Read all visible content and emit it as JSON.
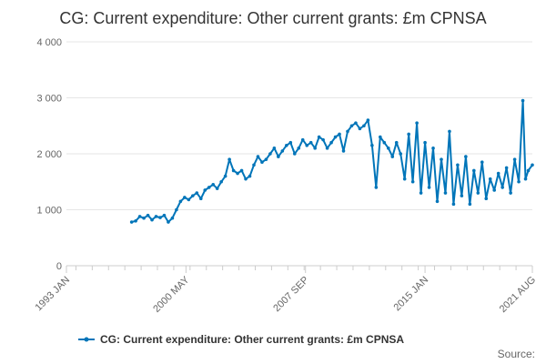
{
  "chart_data": {
    "type": "line",
    "title": "CG: Current expenditure: Other current grants: £m CPNSA",
    "xlabel": "",
    "ylabel": "",
    "x_tick_labels": [
      "1993 JAN",
      "2000 MAY",
      "2007 SEP",
      "2015 JAN",
      "2021 AUG"
    ],
    "x_range": [
      "1993-01",
      "2021-08"
    ],
    "y_ticks": [
      0,
      1000,
      2000,
      3000,
      4000
    ],
    "y_tick_labels": [
      "0",
      "1 000",
      "2 000",
      "3 000",
      "4 000"
    ],
    "ylim": [
      0,
      4000
    ],
    "grid": true,
    "legend_position": "bottom",
    "series": [
      {
        "name": "CG: Current expenditure: Other current grants: £m CPNSA",
        "color": "#0075b9",
        "points": [
          [
            "1997-01",
            780
          ],
          [
            "1997-04",
            800
          ],
          [
            "1997-07",
            880
          ],
          [
            "1997-10",
            850
          ],
          [
            "1998-01",
            900
          ],
          [
            "1998-04",
            820
          ],
          [
            "1998-07",
            880
          ],
          [
            "1998-10",
            860
          ],
          [
            "1999-01",
            900
          ],
          [
            "1999-04",
            780
          ],
          [
            "1999-07",
            850
          ],
          [
            "1999-10",
            1000
          ],
          [
            "2000-01",
            1150
          ],
          [
            "2000-04",
            1220
          ],
          [
            "2000-07",
            1180
          ],
          [
            "2000-10",
            1250
          ],
          [
            "2001-01",
            1300
          ],
          [
            "2001-04",
            1200
          ],
          [
            "2001-07",
            1350
          ],
          [
            "2001-10",
            1400
          ],
          [
            "2002-01",
            1450
          ],
          [
            "2002-04",
            1380
          ],
          [
            "2002-07",
            1500
          ],
          [
            "2002-10",
            1600
          ],
          [
            "2003-01",
            1900
          ],
          [
            "2003-04",
            1700
          ],
          [
            "2003-07",
            1650
          ],
          [
            "2003-10",
            1700
          ],
          [
            "2004-01",
            1550
          ],
          [
            "2004-04",
            1600
          ],
          [
            "2004-07",
            1800
          ],
          [
            "2004-10",
            1950
          ],
          [
            "2005-01",
            1850
          ],
          [
            "2005-04",
            1900
          ],
          [
            "2005-07",
            2000
          ],
          [
            "2005-10",
            2100
          ],
          [
            "2006-01",
            1950
          ],
          [
            "2006-04",
            2050
          ],
          [
            "2006-07",
            2150
          ],
          [
            "2006-10",
            2200
          ],
          [
            "2007-01",
            2000
          ],
          [
            "2007-04",
            2100
          ],
          [
            "2007-07",
            2250
          ],
          [
            "2007-10",
            2150
          ],
          [
            "2008-01",
            2200
          ],
          [
            "2008-04",
            2100
          ],
          [
            "2008-07",
            2300
          ],
          [
            "2008-10",
            2250
          ],
          [
            "2009-01",
            2100
          ],
          [
            "2009-04",
            2200
          ],
          [
            "2009-07",
            2300
          ],
          [
            "2009-10",
            2350
          ],
          [
            "2010-01",
            2050
          ],
          [
            "2010-04",
            2400
          ],
          [
            "2010-07",
            2500
          ],
          [
            "2010-10",
            2550
          ],
          [
            "2011-01",
            2450
          ],
          [
            "2011-04",
            2500
          ],
          [
            "2011-07",
            2600
          ],
          [
            "2011-10",
            2150
          ],
          [
            "2012-01",
            1400
          ],
          [
            "2012-04",
            2300
          ],
          [
            "2012-07",
            2200
          ],
          [
            "2012-10",
            2100
          ],
          [
            "2013-01",
            1950
          ],
          [
            "2013-04",
            2200
          ],
          [
            "2013-07",
            2000
          ],
          [
            "2013-10",
            1550
          ],
          [
            "2014-01",
            2350
          ],
          [
            "2014-04",
            1500
          ],
          [
            "2014-07",
            2550
          ],
          [
            "2014-10",
            1300
          ],
          [
            "2015-01",
            2200
          ],
          [
            "2015-04",
            1400
          ],
          [
            "2015-07",
            2100
          ],
          [
            "2015-10",
            1150
          ],
          [
            "2016-01",
            1900
          ],
          [
            "2016-04",
            1300
          ],
          [
            "2016-07",
            2400
          ],
          [
            "2016-10",
            1100
          ],
          [
            "2017-01",
            1800
          ],
          [
            "2017-04",
            1250
          ],
          [
            "2017-07",
            1950
          ],
          [
            "2017-10",
            1100
          ],
          [
            "2018-01",
            1700
          ],
          [
            "2018-04",
            1300
          ],
          [
            "2018-07",
            1850
          ],
          [
            "2018-10",
            1200
          ],
          [
            "2019-01",
            1550
          ],
          [
            "2019-04",
            1350
          ],
          [
            "2019-07",
            1650
          ],
          [
            "2019-10",
            1400
          ],
          [
            "2020-01",
            1750
          ],
          [
            "2020-04",
            1300
          ],
          [
            "2020-07",
            1900
          ],
          [
            "2020-10",
            1500
          ],
          [
            "2021-01",
            2950
          ],
          [
            "2021-03",
            1550
          ],
          [
            "2021-05",
            1700
          ],
          [
            "2021-08",
            1800
          ]
        ]
      }
    ]
  },
  "source_label": "Source:"
}
